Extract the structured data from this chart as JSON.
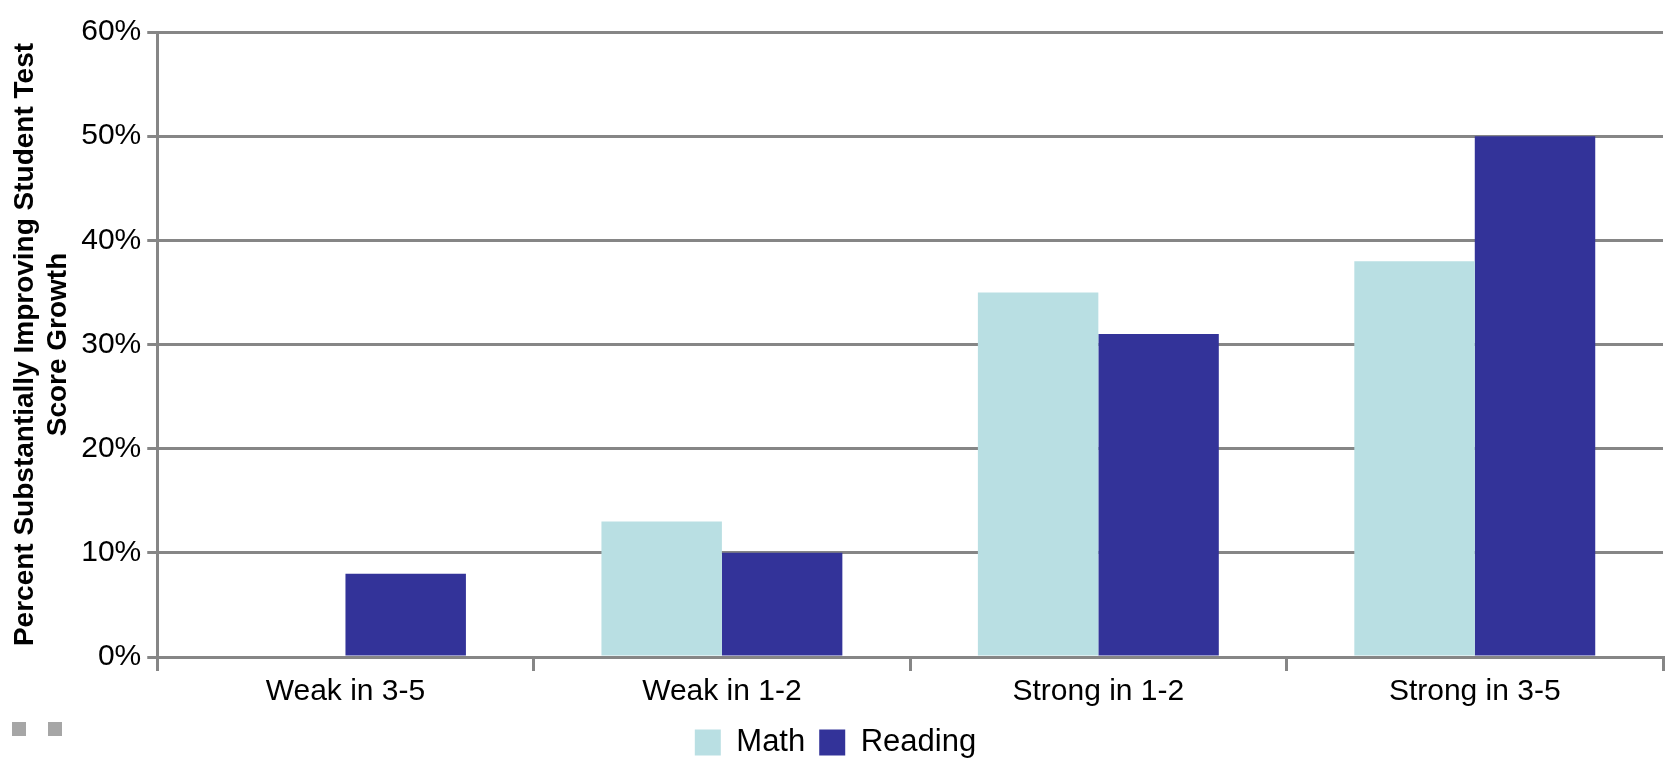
{
  "chart_data": {
    "type": "bar",
    "ylabel": "Percent Substantially Improving Student Test Score Growth",
    "categories": [
      "Weak in 3-5",
      "Weak in 1-2",
      "Strong in 1-2",
      "Strong in 3-5"
    ],
    "series": [
      {
        "name": "Math",
        "color": "#b9dfe3",
        "values": [
          0,
          13,
          35,
          38
        ]
      },
      {
        "name": "Reading",
        "color": "#333399",
        "values": [
          8,
          10,
          31,
          50
        ]
      }
    ],
    "ylim": [
      0,
      60
    ],
    "yticks": [
      {
        "value": 0,
        "label": "0%"
      },
      {
        "value": 10,
        "label": "10%"
      },
      {
        "value": 20,
        "label": "20%"
      },
      {
        "value": 30,
        "label": "30%"
      },
      {
        "value": 40,
        "label": "40%"
      },
      {
        "value": 50,
        "label": "50%"
      },
      {
        "value": 60,
        "label": "60%"
      }
    ],
    "grid": "y",
    "legend": "bottom"
  }
}
